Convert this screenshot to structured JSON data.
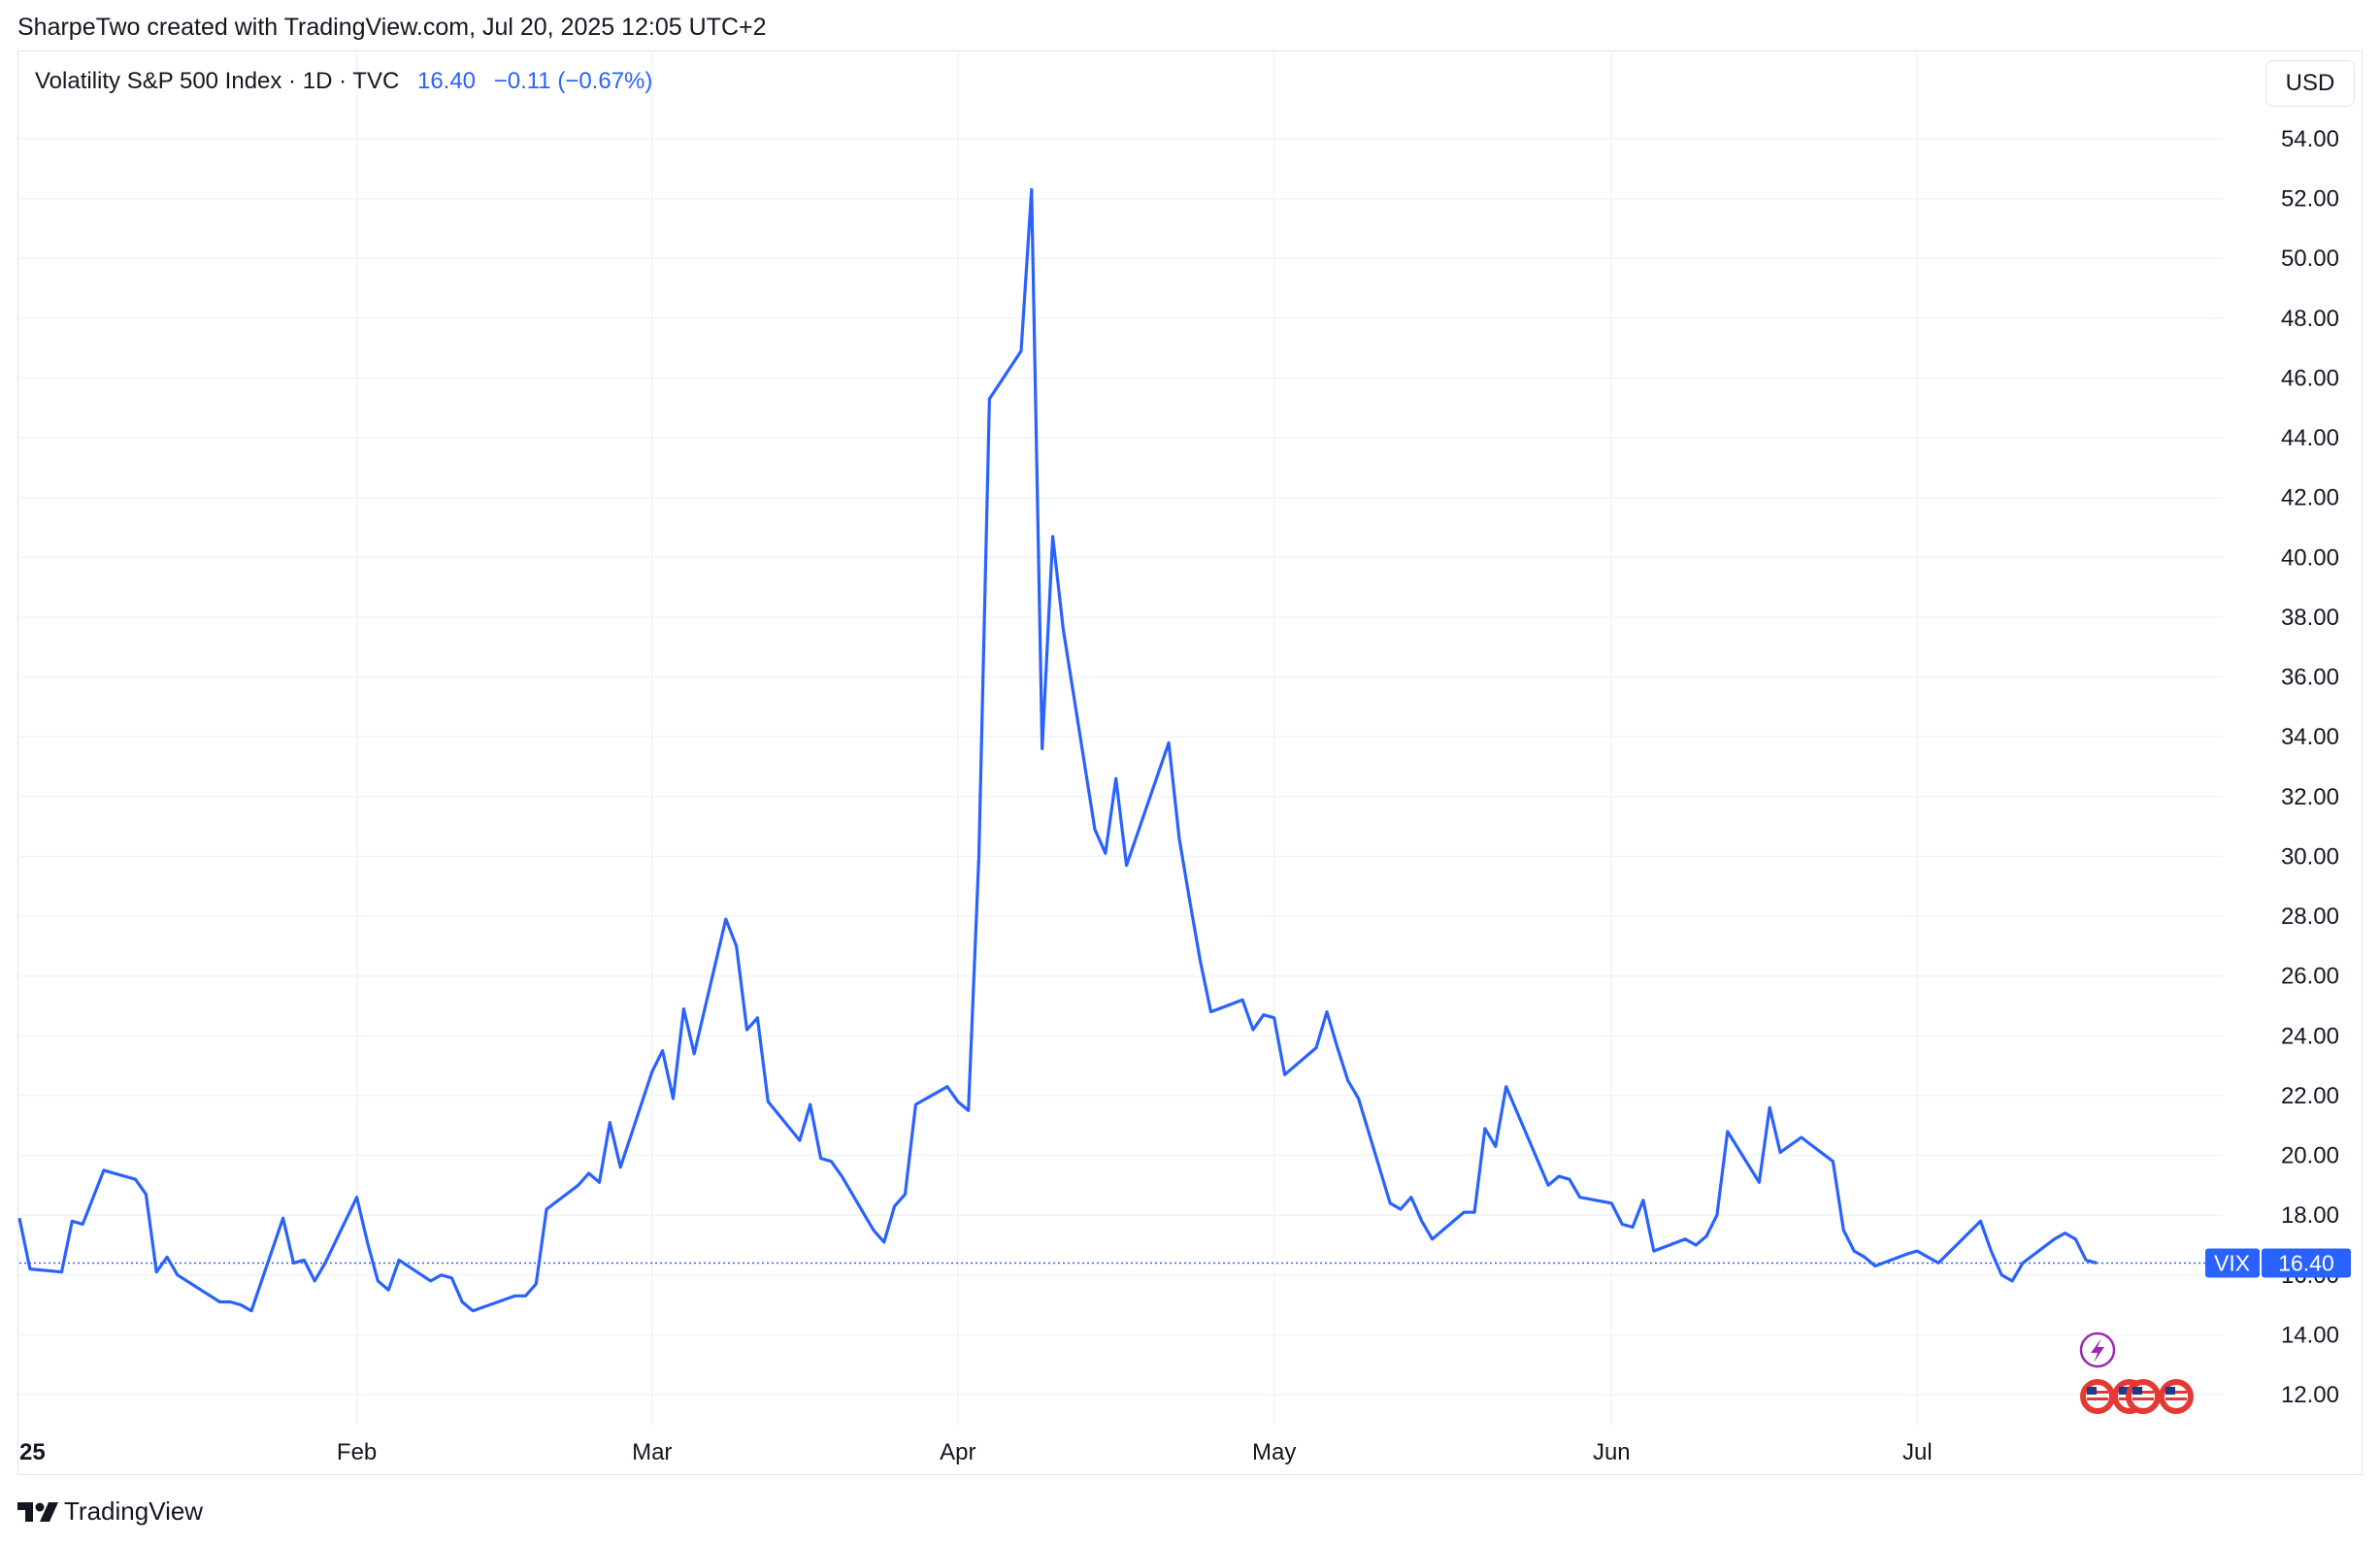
{
  "header": {
    "credit": "SharpeTwo created with TradingView.com, Jul 20, 2025 12:05 UTC+2"
  },
  "legend": {
    "title": "Volatility S&P 500 Index · 1D · TVC",
    "value": "16.40",
    "change": "−0.11 (−0.67%)"
  },
  "currency": "USD",
  "price_tag": {
    "symbol": "VIX",
    "value": "16.40"
  },
  "footer": {
    "brand": "TradingView"
  },
  "colors": {
    "line": "#2962ff",
    "grid": "#f0f3fa",
    "axis_text": "#131722",
    "event_icon": "#9c27b0"
  },
  "chart_data": {
    "type": "line",
    "title": "Volatility S&P 500 Index",
    "xlabel": "",
    "ylabel": "",
    "ylim": [
      11,
      55.5
    ],
    "yticks": [
      12,
      14,
      16,
      18,
      20,
      22,
      24,
      26,
      28,
      30,
      32,
      34,
      36,
      38,
      40,
      42,
      44,
      46,
      48,
      50,
      52,
      54
    ],
    "ytick_labels": [
      "12.00",
      "14.00",
      "16.00",
      "18.00",
      "20.00",
      "22.00",
      "24.00",
      "26.00",
      "28.00",
      "30.00",
      "32.00",
      "34.00",
      "36.00",
      "38.00",
      "40.00",
      "42.00",
      "44.00",
      "46.00",
      "48.00",
      "50.00",
      "52.00",
      "54.00"
    ],
    "xticks": [
      {
        "label": "25",
        "date": "2025-01-02"
      },
      {
        "label": "Feb",
        "date": "2025-02-03"
      },
      {
        "label": "Mar",
        "date": "2025-03-03"
      },
      {
        "label": "Apr",
        "date": "2025-04-01"
      },
      {
        "label": "May",
        "date": "2025-05-01"
      },
      {
        "label": "Jun",
        "date": "2025-06-02"
      },
      {
        "label": "Jul",
        "date": "2025-07-01"
      }
    ],
    "grid": true,
    "current_value": 16.4,
    "series": [
      {
        "name": "VIX",
        "x": [
          "2025-01-02",
          "2025-01-03",
          "2025-01-06",
          "2025-01-07",
          "2025-01-08",
          "2025-01-10",
          "2025-01-13",
          "2025-01-14",
          "2025-01-15",
          "2025-01-16",
          "2025-01-17",
          "2025-01-21",
          "2025-01-22",
          "2025-01-23",
          "2025-01-24",
          "2025-01-27",
          "2025-01-28",
          "2025-01-29",
          "2025-01-30",
          "2025-01-31",
          "2025-02-03",
          "2025-02-04",
          "2025-02-05",
          "2025-02-06",
          "2025-02-07",
          "2025-02-10",
          "2025-02-11",
          "2025-02-12",
          "2025-02-13",
          "2025-02-14",
          "2025-02-18",
          "2025-02-19",
          "2025-02-20",
          "2025-02-21",
          "2025-02-24",
          "2025-02-25",
          "2025-02-26",
          "2025-02-27",
          "2025-02-28",
          "2025-03-03",
          "2025-03-04",
          "2025-03-05",
          "2025-03-06",
          "2025-03-07",
          "2025-03-10",
          "2025-03-11",
          "2025-03-12",
          "2025-03-13",
          "2025-03-14",
          "2025-03-17",
          "2025-03-18",
          "2025-03-19",
          "2025-03-20",
          "2025-03-21",
          "2025-03-24",
          "2025-03-25",
          "2025-03-26",
          "2025-03-27",
          "2025-03-28",
          "2025-03-31",
          "2025-04-01",
          "2025-04-02",
          "2025-04-03",
          "2025-04-04",
          "2025-04-07",
          "2025-04-08",
          "2025-04-09",
          "2025-04-10",
          "2025-04-11",
          "2025-04-14",
          "2025-04-15",
          "2025-04-16",
          "2025-04-17",
          "2025-04-21",
          "2025-04-22",
          "2025-04-23",
          "2025-04-24",
          "2025-04-25",
          "2025-04-28",
          "2025-04-29",
          "2025-04-30",
          "2025-05-01",
          "2025-05-02",
          "2025-05-05",
          "2025-05-06",
          "2025-05-07",
          "2025-05-08",
          "2025-05-09",
          "2025-05-12",
          "2025-05-13",
          "2025-05-14",
          "2025-05-15",
          "2025-05-16",
          "2025-05-19",
          "2025-05-20",
          "2025-05-21",
          "2025-05-22",
          "2025-05-23",
          "2025-05-27",
          "2025-05-28",
          "2025-05-29",
          "2025-05-30",
          "2025-06-02",
          "2025-06-03",
          "2025-06-04",
          "2025-06-05",
          "2025-06-06",
          "2025-06-09",
          "2025-06-10",
          "2025-06-11",
          "2025-06-12",
          "2025-06-13",
          "2025-06-16",
          "2025-06-17",
          "2025-06-18",
          "2025-06-20",
          "2025-06-23",
          "2025-06-24",
          "2025-06-25",
          "2025-06-26",
          "2025-06-27",
          "2025-06-30",
          "2025-07-01",
          "2025-07-02",
          "2025-07-03",
          "2025-07-07",
          "2025-07-08",
          "2025-07-09",
          "2025-07-10",
          "2025-07-11",
          "2025-07-14",
          "2025-07-15",
          "2025-07-16",
          "2025-07-17",
          "2025-07-18"
        ],
        "values": [
          17.9,
          16.2,
          16.1,
          17.8,
          17.7,
          19.5,
          19.2,
          18.7,
          16.1,
          16.6,
          16.0,
          15.1,
          15.1,
          15.0,
          14.8,
          17.9,
          16.4,
          16.5,
          15.8,
          16.4,
          18.6,
          17.1,
          15.8,
          15.5,
          16.5,
          15.8,
          16.0,
          15.9,
          15.1,
          14.8,
          15.3,
          15.3,
          15.7,
          18.2,
          19.0,
          19.4,
          19.1,
          21.1,
          19.6,
          22.8,
          23.5,
          21.9,
          24.9,
          23.4,
          27.9,
          27.0,
          24.2,
          24.6,
          21.8,
          20.5,
          21.7,
          19.9,
          19.8,
          19.3,
          17.5,
          17.1,
          18.3,
          18.7,
          21.7,
          22.3,
          21.8,
          21.5,
          30.0,
          45.3,
          46.9,
          52.3,
          33.6,
          40.7,
          37.6,
          30.9,
          30.1,
          32.6,
          29.7,
          33.8,
          30.6,
          28.5,
          26.5,
          24.8,
          25.2,
          24.2,
          24.7,
          24.6,
          22.7,
          23.6,
          24.8,
          23.6,
          22.5,
          21.9,
          18.4,
          18.2,
          18.6,
          17.8,
          17.2,
          18.1,
          18.1,
          20.9,
          20.3,
          22.3,
          19.0,
          19.3,
          19.2,
          18.6,
          18.4,
          17.7,
          17.6,
          18.5,
          16.8,
          17.2,
          17.0,
          17.3,
          18.0,
          20.8,
          19.1,
          21.6,
          20.1,
          20.6,
          19.8,
          17.5,
          16.8,
          16.6,
          16.3,
          16.7,
          16.8,
          16.6,
          16.4,
          17.8,
          16.8,
          16.0,
          15.8,
          16.4,
          17.2,
          17.4,
          17.2,
          16.5,
          16.4
        ]
      }
    ]
  }
}
